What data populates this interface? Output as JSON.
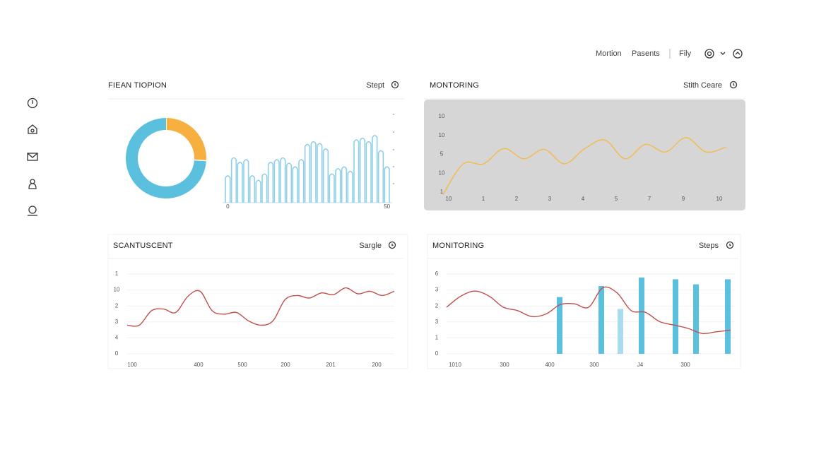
{
  "nav": {
    "items": [
      "Mortion",
      "Pasents",
      "Fily"
    ]
  },
  "chart_data": [
    {
      "type": "pie",
      "title": "FIEAN TIOPION",
      "action": "Stept",
      "values": [
        26,
        74
      ],
      "colors": [
        "#f7b040",
        "#5bc0de"
      ]
    },
    {
      "type": "bar",
      "color": "#8fd0e8",
      "ylim": [
        0,
        100
      ],
      "categories": [
        "0",
        null,
        null,
        null,
        null,
        null,
        null,
        null,
        null,
        null,
        null,
        null,
        null,
        null,
        null,
        null,
        null,
        null,
        null,
        null,
        null,
        null,
        null,
        null,
        null,
        null,
        "50"
      ],
      "values": [
        30,
        50,
        45,
        48,
        30,
        25,
        32,
        45,
        48,
        50,
        44,
        40,
        48,
        65,
        68,
        66,
        60,
        32,
        38,
        40,
        35,
        70,
        72,
        68,
        75,
        58,
        40
      ]
    },
    {
      "type": "line",
      "title": "MONTORING",
      "action": "Stith Ceare",
      "ylim": [
        0,
        100
      ],
      "y_labels": [
        "10",
        "10",
        "5",
        "10",
        "1"
      ],
      "x_labels": [
        "10",
        "1",
        "2",
        "3",
        "4",
        "5",
        "7",
        "9",
        "10"
      ],
      "series": [
        {
          "color": "#f5b94a",
          "values": [
            4,
            40,
            40,
            58,
            46,
            57,
            40,
            58,
            68,
            46,
            63,
            54,
            71,
            54,
            60
          ]
        }
      ]
    },
    {
      "type": "line",
      "title": "SCANTUSCENT",
      "action": "Sargle",
      "ylim": [
        0,
        100
      ],
      "y_labels": [
        "1",
        "10",
        "2",
        "3",
        "4",
        "0"
      ],
      "x_labels": [
        "100",
        "400",
        "500",
        "200",
        "201",
        "200"
      ],
      "series": [
        {
          "color": "#c0504d",
          "values": [
            33,
            33,
            50,
            52,
            48,
            67,
            73,
            50,
            46,
            48,
            38,
            33,
            38,
            63,
            68,
            65,
            71,
            69,
            77,
            70,
            73,
            68,
            73
          ]
        }
      ]
    },
    {
      "type": "combo",
      "title": "MONITORING",
      "action": "Steps",
      "ylim": [
        0,
        100
      ],
      "y_labels": [
        "6",
        "3",
        "2",
        "3",
        "1",
        "0"
      ],
      "x_labels": [
        "1010",
        "300",
        "400",
        "300",
        "J4",
        "300"
      ],
      "series": [
        {
          "type": "bar",
          "colors": [
            "#5bc0de",
            "#5bc0de",
            "#a8dcef",
            "#5bc0de",
            "#5bc0de",
            "#5bc0de",
            "#5bc0de"
          ],
          "values": [
            67,
            80,
            53,
            90,
            88,
            82,
            88
          ]
        },
        {
          "type": "line",
          "color": "#c0504d",
          "values": [
            55,
            68,
            74,
            68,
            55,
            51,
            44,
            47,
            58,
            59,
            55,
            78,
            72,
            51,
            49,
            38,
            34,
            30,
            24,
            26,
            28
          ]
        }
      ]
    }
  ]
}
